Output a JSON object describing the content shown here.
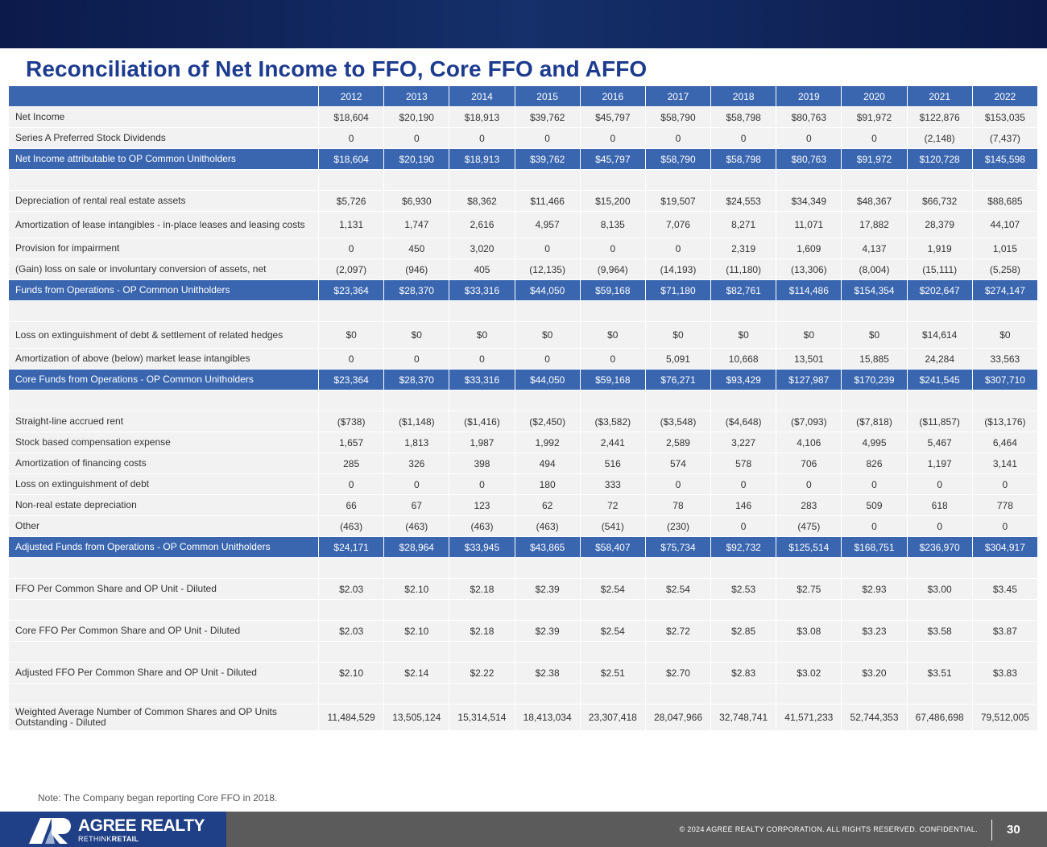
{
  "title": "Reconciliation of Net Income to FFO, Core FFO and AFFO",
  "colors": {
    "header": "#3a66b0",
    "title": "#1d3b8f",
    "band": "#0b1a4a",
    "footer": "#5b5b5b",
    "logo_bg": "#1f3f86"
  },
  "years": [
    "2012",
    "2013",
    "2014",
    "2015",
    "2016",
    "2017",
    "2018",
    "2019",
    "2020",
    "2021",
    "2022"
  ],
  "rows": [
    {
      "type": "normal",
      "label": "Net Income",
      "values": [
        "$18,604",
        "$20,190",
        "$18,913",
        "$39,762",
        "$45,797",
        "$58,790",
        "$58,798",
        "$80,763",
        "$91,972",
        "$122,876",
        "$153,035"
      ]
    },
    {
      "type": "normal",
      "label": "Series A Preferred Stock Dividends",
      "values": [
        "0",
        "0",
        "0",
        "0",
        "0",
        "0",
        "0",
        "0",
        "0",
        "(2,148)",
        "(7,437)"
      ]
    },
    {
      "type": "total",
      "label": "Net Income attributable to OP Common Unitholders",
      "values": [
        "$18,604",
        "$20,190",
        "$18,913",
        "$39,762",
        "$45,797",
        "$58,790",
        "$58,798",
        "$80,763",
        "$91,972",
        "$120,728",
        "$145,598"
      ]
    },
    {
      "type": "blank"
    },
    {
      "type": "normal",
      "label": "Depreciation of rental real estate assets",
      "values": [
        "$5,726",
        "$6,930",
        "$8,362",
        "$11,466",
        "$15,200",
        "$19,507",
        "$24,553",
        "$34,349",
        "$48,367",
        "$66,732",
        "$88,685"
      ]
    },
    {
      "type": "tall",
      "label": "Amortization of lease intangibles - in-place leases and leasing costs",
      "values": [
        "1,131",
        "1,747",
        "2,616",
        "4,957",
        "8,135",
        "7,076",
        "8,271",
        "11,071",
        "17,882",
        "28,379",
        "44,107"
      ]
    },
    {
      "type": "normal",
      "label": "Provision for impairment",
      "values": [
        "0",
        "450",
        "3,020",
        "0",
        "0",
        "0",
        "2,319",
        "1,609",
        "4,137",
        "1,919",
        "1,015"
      ]
    },
    {
      "type": "normal",
      "label": "(Gain) loss on sale or involuntary conversion of assets, net",
      "values": [
        "(2,097)",
        "(946)",
        "405",
        "(12,135)",
        "(9,964)",
        "(14,193)",
        "(11,180)",
        "(13,306)",
        "(8,004)",
        "(15,111)",
        "(5,258)"
      ]
    },
    {
      "type": "total",
      "label": "Funds from Operations - OP Common Unitholders",
      "values": [
        "$23,364",
        "$28,370",
        "$33,316",
        "$44,050",
        "$59,168",
        "$71,180",
        "$82,761",
        "$114,486",
        "$154,354",
        "$202,647",
        "$274,147"
      ]
    },
    {
      "type": "blank"
    },
    {
      "type": "tall",
      "label": "Loss on extinguishment of debt & settlement of related hedges",
      "values": [
        "$0",
        "$0",
        "$0",
        "$0",
        "$0",
        "$0",
        "$0",
        "$0",
        "$0",
        "$14,614",
        "$0"
      ]
    },
    {
      "type": "normal",
      "label": "Amortization of above (below) market lease intangibles",
      "values": [
        "0",
        "0",
        "0",
        "0",
        "0",
        "5,091",
        "10,668",
        "13,501",
        "15,885",
        "24,284",
        "33,563"
      ]
    },
    {
      "type": "total",
      "label": "Core Funds from Operations - OP Common Unitholders",
      "values": [
        "$23,364",
        "$28,370",
        "$33,316",
        "$44,050",
        "$59,168",
        "$76,271",
        "$93,429",
        "$127,987",
        "$170,239",
        "$241,545",
        "$307,710"
      ]
    },
    {
      "type": "blank"
    },
    {
      "type": "normal",
      "label": "Straight-line accrued rent",
      "values": [
        "($738)",
        "($1,148)",
        "($1,416)",
        "($2,450)",
        "($3,582)",
        "($3,548)",
        "($4,648)",
        "($7,093)",
        "($7,818)",
        "($11,857)",
        "($13,176)"
      ]
    },
    {
      "type": "normal",
      "label": "Stock based compensation expense",
      "values": [
        "1,657",
        "1,813",
        "1,987",
        "1,992",
        "2,441",
        "2,589",
        "3,227",
        "4,106",
        "4,995",
        "5,467",
        "6,464"
      ]
    },
    {
      "type": "normal",
      "label": "Amortization of financing costs",
      "values": [
        "285",
        "326",
        "398",
        "494",
        "516",
        "574",
        "578",
        "706",
        "826",
        "1,197",
        "3,141"
      ]
    },
    {
      "type": "normal",
      "label": "Loss on extinguishment of debt",
      "values": [
        "0",
        "0",
        "0",
        "180",
        "333",
        "0",
        "0",
        "0",
        "0",
        "0",
        "0"
      ]
    },
    {
      "type": "normal",
      "label": "Non-real estate depreciation",
      "values": [
        "66",
        "67",
        "123",
        "62",
        "72",
        "78",
        "146",
        "283",
        "509",
        "618",
        "778"
      ]
    },
    {
      "type": "normal",
      "label": "Other",
      "values": [
        "(463)",
        "(463)",
        "(463)",
        "(463)",
        "(541)",
        "(230)",
        "0",
        "(475)",
        "0",
        "0",
        "0"
      ]
    },
    {
      "type": "total",
      "label": "Adjusted Funds from Operations - OP Common Unitholders",
      "values": [
        "$24,171",
        "$28,964",
        "$33,945",
        "$43,865",
        "$58,407",
        "$75,734",
        "$92,732",
        "$125,514",
        "$168,751",
        "$236,970",
        "$304,917"
      ]
    },
    {
      "type": "blank"
    },
    {
      "type": "normal",
      "label": "FFO Per Common Share and OP Unit - Diluted",
      "values": [
        "$2.03",
        "$2.10",
        "$2.18",
        "$2.39",
        "$2.54",
        "$2.54",
        "$2.53",
        "$2.75",
        "$2.93",
        "$3.00",
        "$3.45"
      ]
    },
    {
      "type": "blank"
    },
    {
      "type": "normal",
      "label": "Core FFO Per Common Share and OP Unit - Diluted",
      "values": [
        "$2.03",
        "$2.10",
        "$2.18",
        "$2.39",
        "$2.54",
        "$2.72",
        "$2.85",
        "$3.08",
        "$3.23",
        "$3.58",
        "$3.87"
      ]
    },
    {
      "type": "blank"
    },
    {
      "type": "normal",
      "label": "Adjusted FFO Per Common Share and OP Unit - Diluted",
      "values": [
        "$2.10",
        "$2.14",
        "$2.22",
        "$2.38",
        "$2.51",
        "$2.70",
        "$2.83",
        "$3.02",
        "$3.20",
        "$3.51",
        "$3.83"
      ]
    },
    {
      "type": "blank"
    },
    {
      "type": "tall",
      "label": "Weighted Average Number of Common Shares and OP Units Outstanding - Diluted",
      "values": [
        "11,484,529",
        "13,505,124",
        "15,314,514",
        "18,413,034",
        "23,307,418",
        "28,047,966",
        "32,748,741",
        "41,571,233",
        "52,744,353",
        "67,486,698",
        "79,512,005"
      ]
    }
  ],
  "note": "Note: The Company began reporting Core FFO in 2018.",
  "footer": {
    "logo_name": "AGREE REALTY",
    "logo_tag_1": "RETHINK",
    "logo_tag_2": "RETAIL",
    "copyright": "© 2024 AGREE REALTY CORPORATION. ALL RIGHTS RESERVED. CONFIDENTIAL.",
    "page": "30"
  }
}
